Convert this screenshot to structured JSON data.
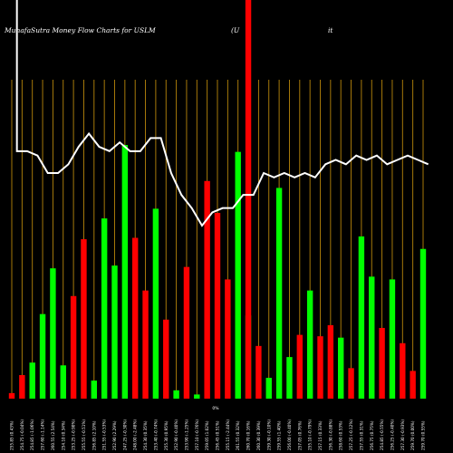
{
  "title": "MunafaSutra  Money Flow  Charts for USLM",
  "title_right_fragments": [
    "(U",
    "it"
  ],
  "chart_data": {
    "type": "bar",
    "title": "MunafaSutra  Money Flow  Charts for USLM",
    "zero_label": "0%",
    "colors": {
      "up": "#00ff00",
      "down": "#ff0000",
      "background": "#000000",
      "line": "#ffffff",
      "grid": "#b8860b"
    },
    "categories": [
      "255.85 (0.43%)",
      "254.75 (-0.04%)",
      "254.85 (-1.06%)",
      "257.60 (-1.14%)",
      "260.55 (2.54%)",
      "254.10 (0.34%)",
      "253.25 (-0.90%)",
      "255.55 (-0.51%)",
      "256.85 (2.10%)",
      "251.55 (-0.53%)",
      "252.90 (2.29%)",
      "247.25 (-0.30%)",
      "248.00 (-2.48%)",
      "254.30 (0.35%)",
      "253.40 (-0.74%)",
      "255.30 (0.95%)",
      "252.90 (-0.40%)",
      "253.90 (-1.25%)",
      "257.10 (-0.76%)",
      "259.05 (1.02%)",
      "256.45 (0.51%)",
      "255.15 (-2.44%)",
      "261.55 (0.32%)",
      "260.70 (0.16%)",
      "260.30 (0.39%)",
      "259.30 (-0.10%)",
      "259.55 (1.40%)",
      "256.00 (-0.40%)",
      "257.05 (0.76%)",
      "255.10 (-0.79%)",
      "257.15 (0.33%)",
      "256.30 (-0.88%)",
      "258.60 (0.53%)",
      "257.25 (-0.12%)",
      "257.55 (0.31%)",
      "256.75 (0.75%)",
      "254.85 (-0.55%)",
      "256.25 (-0.40%)",
      "257.30 (-0.93%)",
      "259.70 (0.00%)",
      "259.70 (0.55%)"
    ],
    "bar_directions": [
      "down",
      "down",
      "up",
      "up",
      "up",
      "up",
      "down",
      "down",
      "up",
      "up",
      "up",
      "up",
      "down",
      "down",
      "up",
      "down",
      "up",
      "down",
      "up",
      "down",
      "down",
      "down",
      "up",
      "up",
      "down",
      "up",
      "up",
      "up",
      "down",
      "up",
      "down",
      "down",
      "up",
      "down",
      "up",
      "up",
      "down",
      "up",
      "down",
      "down",
      "up"
    ],
    "bar_values": [
      4,
      17,
      26,
      61,
      94,
      24,
      74,
      115,
      13,
      130,
      96,
      183,
      116,
      78,
      137,
      57,
      6,
      95,
      3,
      157,
      134,
      86,
      178,
      60,
      38,
      15,
      152,
      30,
      46,
      78,
      45,
      53,
      44,
      22,
      117,
      88,
      51,
      86,
      40,
      20,
      108
    ],
    "value_scale_max": 183,
    "line_values": [
      100,
      81,
      80,
      76,
      76,
      78,
      82,
      85,
      82,
      81,
      83,
      81,
      81,
      84,
      84,
      76,
      71,
      68,
      64,
      67,
      68,
      68,
      71,
      71,
      76,
      75,
      76,
      75,
      76,
      75,
      78,
      79,
      78,
      80,
      79,
      80,
      78,
      79,
      80,
      79,
      78
    ],
    "line_scale_max": 100,
    "overlay_bar": {
      "category_index": 23,
      "color": "#ff0000"
    }
  }
}
